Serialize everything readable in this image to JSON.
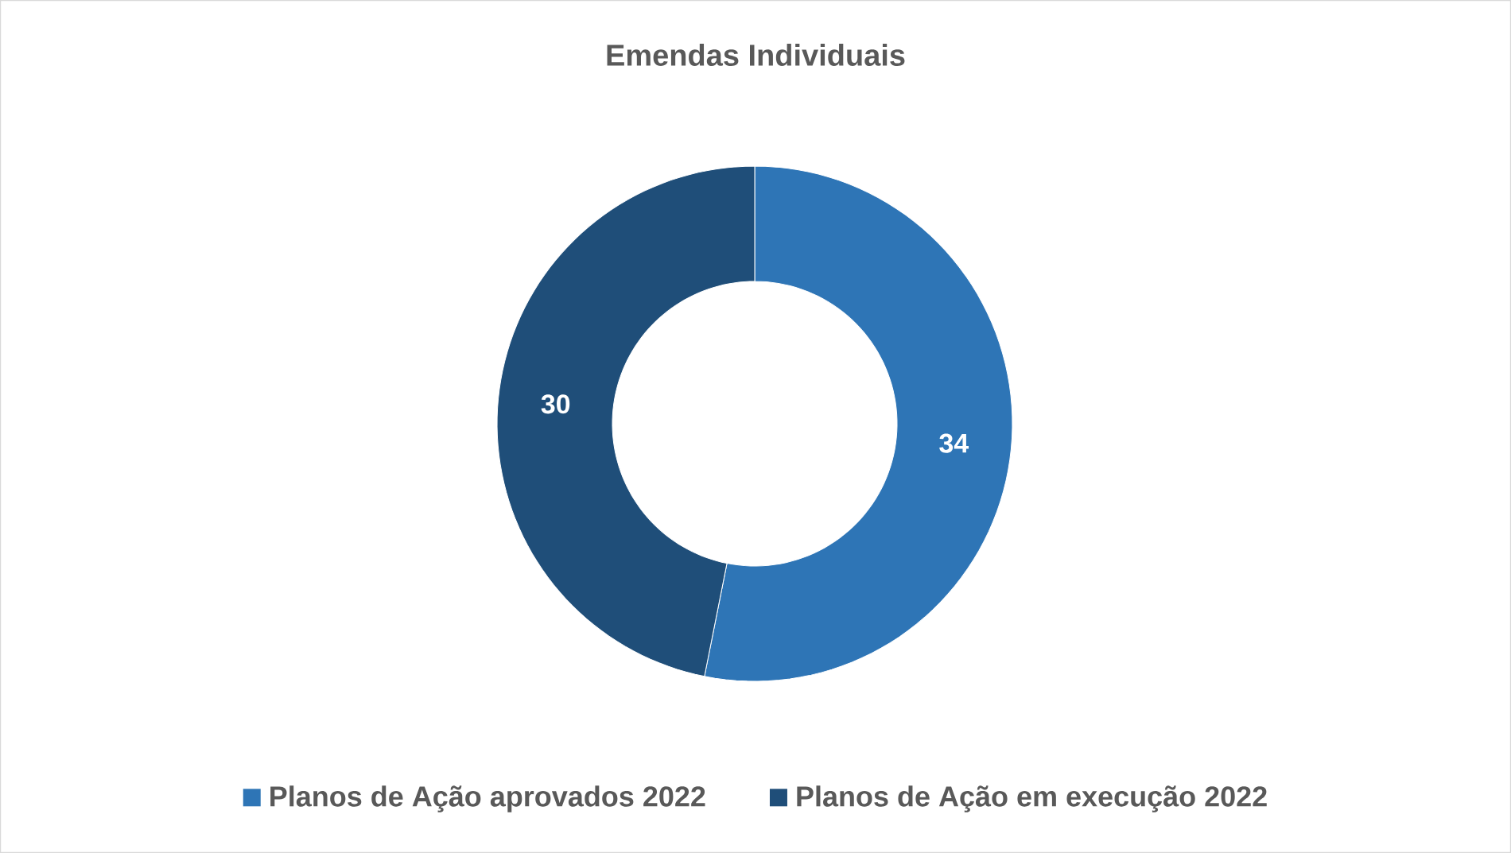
{
  "chart_data": {
    "type": "donut",
    "title": "Emendas Individuais",
    "categories": [
      "Planos de Ação aprovados 2022",
      "Planos de Ação em execução 2022"
    ],
    "values": [
      34,
      30
    ],
    "colors": [
      "#2e75b6",
      "#1f4e79"
    ],
    "data_labels": true,
    "legend": "bottom"
  }
}
